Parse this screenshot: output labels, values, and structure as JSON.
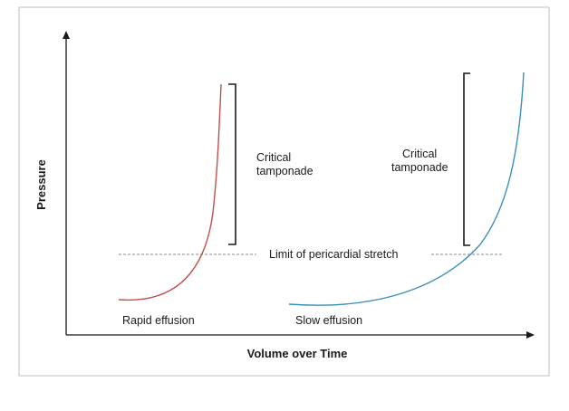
{
  "diagram": {
    "x_axis_label": "Volume over Time",
    "y_axis_label": "Pressure",
    "limit_label": "Limit of pericardial stretch",
    "rapid": {
      "label": "Rapid effusion",
      "bracket_label_line1": "Critical",
      "bracket_label_line2": "tamponade"
    },
    "slow": {
      "label": "Slow effusion",
      "bracket_label_line1": "Critical",
      "bracket_label_line2": "tamponade"
    },
    "colors": {
      "rapid_curve": "#c0504d",
      "slow_curve": "#3a8fb7",
      "axis": "#1a1a1a",
      "frame": "#bfbfbf",
      "limit_line": "#8a8a8a"
    }
  }
}
